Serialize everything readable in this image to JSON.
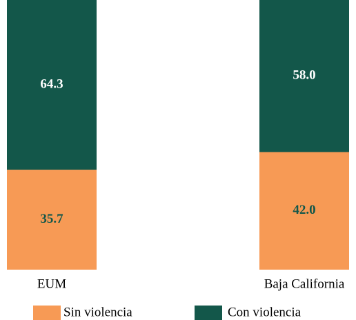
{
  "chart_data": {
    "type": "stacked_bar",
    "categories": [
      "EUM",
      "Baja California"
    ],
    "series": [
      {
        "name": "Sin violencia",
        "color": "#f79a55",
        "values": [
          35.7,
          42.0
        ],
        "value_labels": [
          "35.7",
          "42.0"
        ],
        "label_color": "#13574a"
      },
      {
        "name": "Con violencia",
        "color": "#13574a",
        "values": [
          64.3,
          58.0
        ],
        "value_labels": [
          "64.3",
          "58.0"
        ],
        "label_color": "#ffffff"
      }
    ],
    "ylim": [
      0,
      100
    ]
  }
}
